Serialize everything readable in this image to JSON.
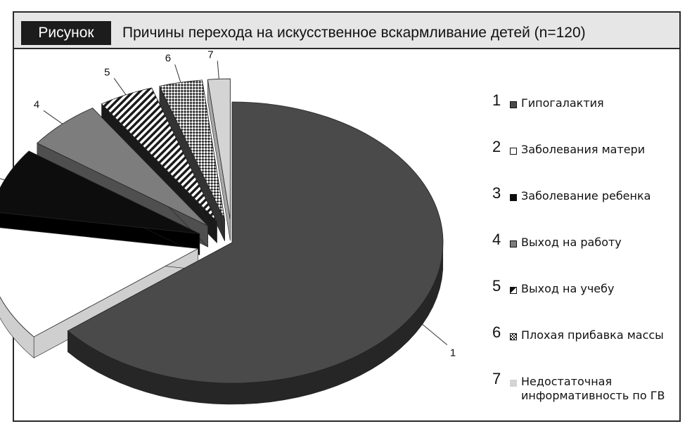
{
  "header": {
    "badge": "Рисунок",
    "title": "Причины перехода на искусственное вскармливание детей (n=120)"
  },
  "chart_data": {
    "type": "pie",
    "style": "3d-exploded",
    "categories": [
      "1",
      "2",
      "3",
      "4",
      "5",
      "6",
      "7"
    ],
    "values": [
      64.2,
      13.3,
      7.5,
      5.8,
      4.2,
      3.3,
      1.7
    ],
    "legend_position": "right",
    "legend": [
      {
        "num": "1",
        "label": "Гипогалактия",
        "pattern": "dark-gray"
      },
      {
        "num": "2",
        "label": "Заболевания матери",
        "pattern": "white"
      },
      {
        "num": "3",
        "label": "Заболевание ребенка",
        "pattern": "black"
      },
      {
        "num": "4",
        "label": "Выход на работу",
        "pattern": "medium-gray"
      },
      {
        "num": "5",
        "label": "Выход на учебу",
        "pattern": "diagonal-stripes"
      },
      {
        "num": "6",
        "label": "Плохая прибавка массы",
        "pattern": "checkered"
      },
      {
        "num": "7",
        "label": "Недостаточная информативность по ГВ",
        "pattern": "light-gray"
      }
    ],
    "colors": {
      "dark-gray": "#4a4a4a",
      "white": "#ffffff",
      "black": "#0d0d0d",
      "medium-gray": "#7d7d7d",
      "light-gray": "#d4d4d4"
    }
  }
}
